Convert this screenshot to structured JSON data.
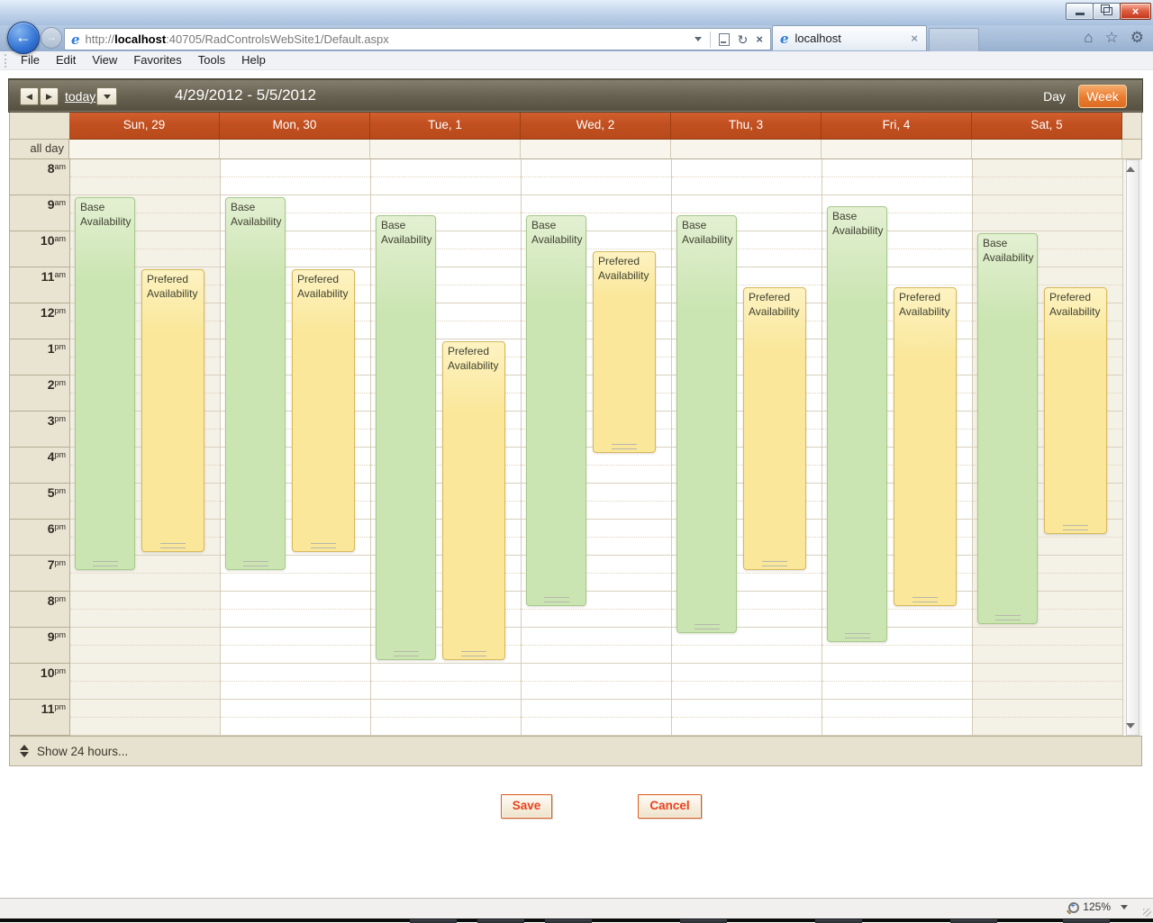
{
  "browser": {
    "address": {
      "prefix": "http://",
      "domain": "localhost",
      "path": ":40705/RadControlsWebSite1/Default.aspx"
    },
    "tab": {
      "title": "localhost"
    },
    "menu": [
      "File",
      "Edit",
      "View",
      "Favorites",
      "Tools",
      "Help"
    ],
    "status": {
      "zoom": "125%"
    }
  },
  "scheduler": {
    "nav": {
      "today": "today",
      "title": "4/29/2012 - 5/5/2012",
      "day": "Day",
      "week": "Week"
    },
    "allday_label": "all day",
    "hours": [
      [
        "8",
        "am"
      ],
      [
        "9",
        "am"
      ],
      [
        "10",
        "am"
      ],
      [
        "11",
        "am"
      ],
      [
        "12",
        "pm"
      ],
      [
        "1",
        "pm"
      ],
      [
        "2",
        "pm"
      ],
      [
        "3",
        "pm"
      ],
      [
        "4",
        "pm"
      ],
      [
        "5",
        "pm"
      ],
      [
        "6",
        "pm"
      ],
      [
        "7",
        "pm"
      ],
      [
        "8",
        "pm"
      ],
      [
        "9",
        "pm"
      ],
      [
        "10",
        "pm"
      ],
      [
        "11",
        "pm"
      ]
    ],
    "days": [
      {
        "label": "Sun, 29",
        "weekend": true
      },
      {
        "label": "Mon, 30",
        "weekend": false
      },
      {
        "label": "Tue, 1",
        "weekend": false
      },
      {
        "label": "Wed, 2",
        "weekend": false
      },
      {
        "label": "Thu, 3",
        "weekend": false
      },
      {
        "label": "Fri, 4",
        "weekend": false
      },
      {
        "label": "Sat, 5",
        "weekend": true
      }
    ],
    "events": [
      {
        "day": 0,
        "type": "base",
        "title": "Base Availability",
        "start": 9,
        "end": 19.5
      },
      {
        "day": 0,
        "type": "prefered",
        "title": "Prefered Availability",
        "start": 11,
        "end": 19
      },
      {
        "day": 1,
        "type": "base",
        "title": "Base Availability",
        "start": 9,
        "end": 19.5
      },
      {
        "day": 1,
        "type": "prefered",
        "title": "Prefered Availability",
        "start": 11,
        "end": 19
      },
      {
        "day": 2,
        "type": "base",
        "title": "Base Availability",
        "start": 9.5,
        "end": 22
      },
      {
        "day": 2,
        "type": "prefered",
        "title": "Prefered Availability",
        "start": 13,
        "end": 22
      },
      {
        "day": 3,
        "type": "base",
        "title": "Base Availability",
        "start": 9.5,
        "end": 20.5
      },
      {
        "day": 3,
        "type": "prefered",
        "title": "Prefered Availability",
        "start": 10.5,
        "end": 16.25
      },
      {
        "day": 4,
        "type": "base",
        "title": "Base Availability",
        "start": 9.5,
        "end": 21.25
      },
      {
        "day": 4,
        "type": "prefered",
        "title": "Prefered Availability",
        "start": 11.5,
        "end": 19.5
      },
      {
        "day": 5,
        "type": "base",
        "title": "Base Availability",
        "start": 9.25,
        "end": 21.5
      },
      {
        "day": 5,
        "type": "prefered",
        "title": "Prefered Availability",
        "start": 11.5,
        "end": 20.5
      },
      {
        "day": 6,
        "type": "base",
        "title": "Base Availability",
        "start": 10,
        "end": 21
      },
      {
        "day": 6,
        "type": "prefered",
        "title": "Prefered Availability",
        "start": 11.5,
        "end": 18.5
      }
    ],
    "footer": "Show 24 hours...",
    "colors": {
      "base_fill": "#cde6b4",
      "base_border": "#a7c98b",
      "prefered_fill": "#fbe89e",
      "prefered_border": "#d8b85c",
      "header_orange": "#c25020",
      "navbar_olive": "#6b6555",
      "accent_red": "#e8421e"
    }
  },
  "actions": {
    "save": "Save",
    "cancel": "Cancel"
  }
}
